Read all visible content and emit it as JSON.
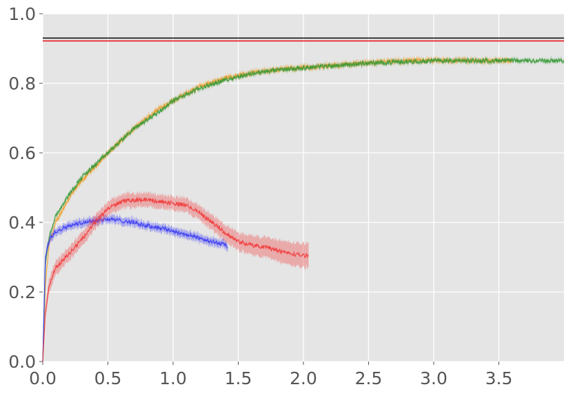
{
  "chart_data": {
    "type": "line",
    "title": "",
    "xlabel": "",
    "ylabel": "",
    "xlim": [
      0,
      4.0
    ],
    "ylim": [
      0,
      1.0
    ],
    "grid": true,
    "xticks": [
      0.0,
      0.5,
      1.0,
      1.5,
      2.0,
      2.5,
      3.0,
      3.5
    ],
    "xtick_labels": [
      "0.0",
      "0.5",
      "1.0",
      "1.5",
      "2.0",
      "2.5",
      "3.0",
      "3.5"
    ],
    "yticks": [
      0.0,
      0.2,
      0.4,
      0.6,
      0.8,
      1.0
    ],
    "ytick_labels": [
      "0.0",
      "0.2",
      "0.4",
      "0.6",
      "0.8",
      "1.0"
    ],
    "colors": {
      "background": "#e5e5e5",
      "grid": "#ffffff",
      "tick_text": "#555555"
    },
    "hlines": [
      {
        "y": 0.93,
        "color": "#111111"
      },
      {
        "y": 0.922,
        "color": "#e8141a"
      }
    ],
    "series": [
      {
        "color": "#f0a030",
        "band": 0.008,
        "x": [
          0.0,
          0.02,
          0.05,
          0.1,
          0.2,
          0.3,
          0.5,
          0.7,
          0.9,
          1.0,
          1.2,
          1.4,
          1.6,
          1.8,
          2.0,
          2.2,
          2.5,
          2.8,
          3.0,
          3.3,
          3.5,
          3.6
        ],
        "y": [
          0.0,
          0.22,
          0.34,
          0.4,
          0.47,
          0.52,
          0.6,
          0.67,
          0.73,
          0.75,
          0.79,
          0.815,
          0.83,
          0.84,
          0.845,
          0.85,
          0.86,
          0.865,
          0.865,
          0.865,
          0.865,
          0.865
        ]
      },
      {
        "color": "#3a9a3a",
        "band": 0.006,
        "x": [
          0.0,
          0.02,
          0.05,
          0.1,
          0.2,
          0.3,
          0.5,
          0.7,
          0.9,
          1.0,
          1.2,
          1.4,
          1.6,
          1.8,
          2.0,
          2.5,
          3.0,
          3.5,
          4.0
        ],
        "y": [
          0.0,
          0.28,
          0.36,
          0.42,
          0.48,
          0.53,
          0.6,
          0.67,
          0.72,
          0.75,
          0.785,
          0.81,
          0.828,
          0.838,
          0.845,
          0.858,
          0.865,
          0.865,
          0.865
        ]
      },
      {
        "color": "#3b3bf5",
        "band": 0.012,
        "x": [
          0.0,
          0.02,
          0.05,
          0.1,
          0.2,
          0.3,
          0.4,
          0.5,
          0.6,
          0.7,
          0.8,
          0.9,
          1.0,
          1.1,
          1.2,
          1.3,
          1.4,
          1.42
        ],
        "y": [
          0.0,
          0.3,
          0.35,
          0.375,
          0.39,
          0.4,
          0.405,
          0.41,
          0.405,
          0.4,
          0.39,
          0.385,
          0.375,
          0.365,
          0.355,
          0.345,
          0.335,
          0.33
        ]
      },
      {
        "color": "#f23b3b",
        "band": 0.02,
        "band_growth": 0.015,
        "x": [
          0.0,
          0.02,
          0.05,
          0.1,
          0.2,
          0.3,
          0.4,
          0.5,
          0.6,
          0.7,
          0.8,
          0.9,
          1.0,
          1.1,
          1.2,
          1.3,
          1.4,
          1.5,
          1.6,
          1.7,
          1.8,
          1.9,
          2.0,
          2.04
        ],
        "y": [
          0.0,
          0.14,
          0.22,
          0.27,
          0.31,
          0.35,
          0.4,
          0.44,
          0.46,
          0.465,
          0.465,
          0.46,
          0.455,
          0.45,
          0.43,
          0.4,
          0.37,
          0.345,
          0.335,
          0.33,
          0.32,
          0.31,
          0.305,
          0.305
        ]
      }
    ]
  }
}
